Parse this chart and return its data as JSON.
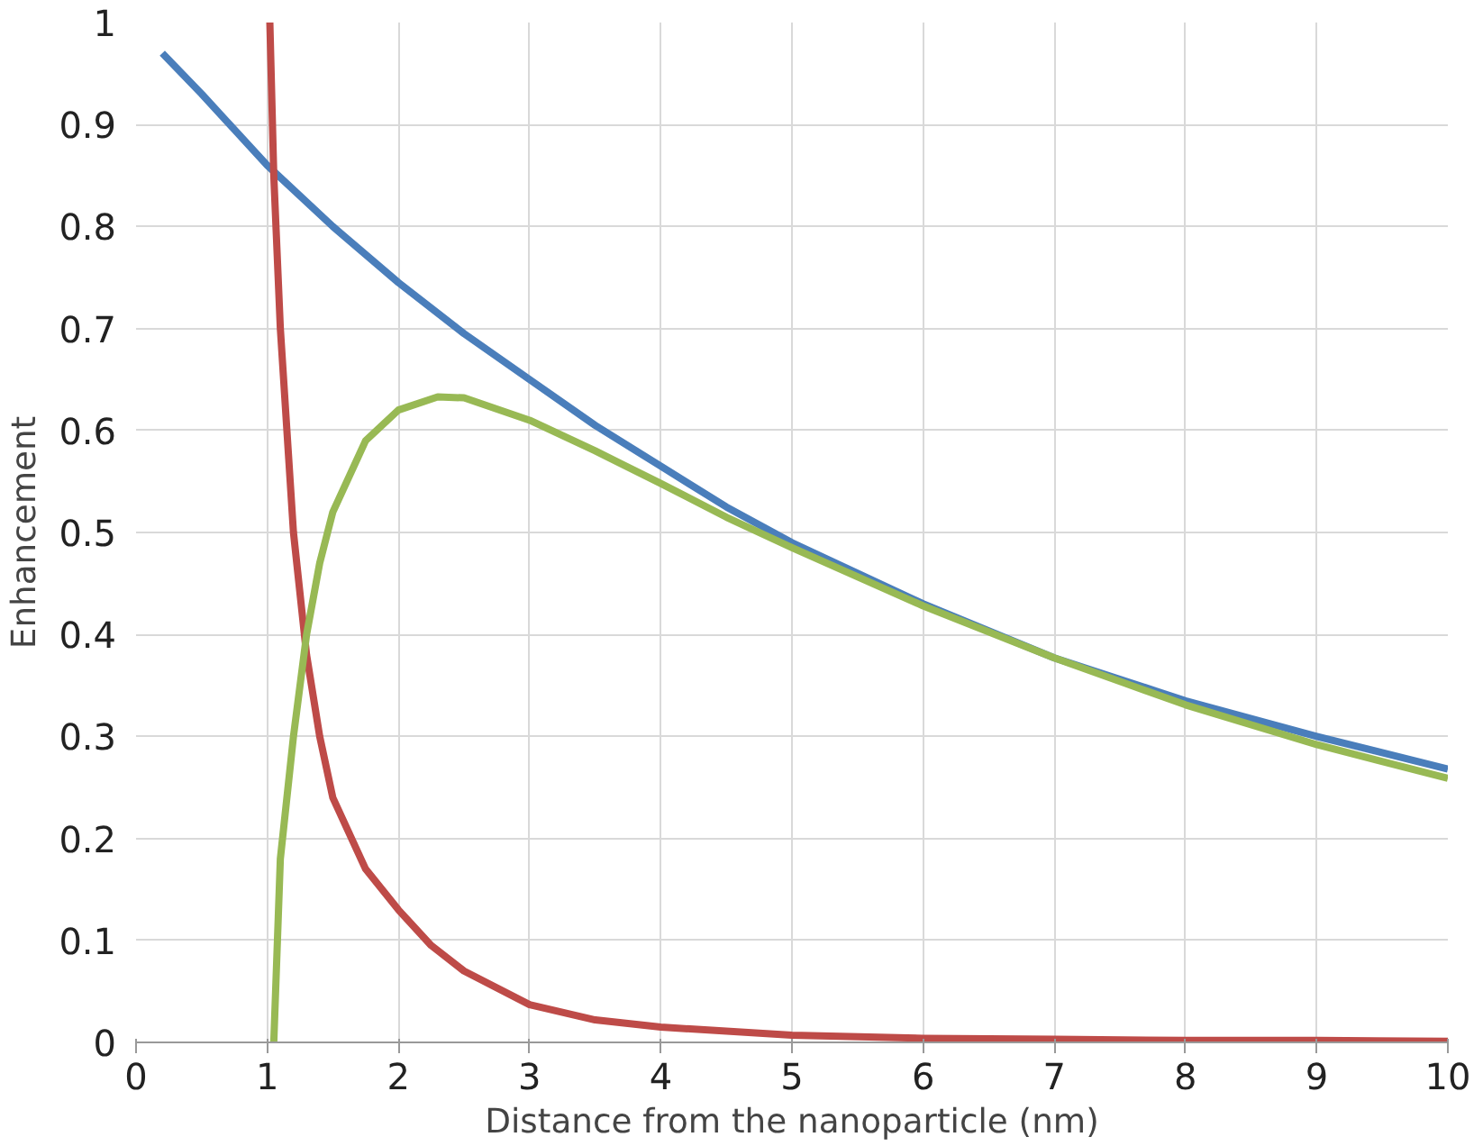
{
  "chart_data": {
    "type": "line",
    "xlabel": "Distance from the nanoparticle (nm)",
    "ylabel": "Enhancement",
    "xlim": [
      0,
      10
    ],
    "ylim": [
      0,
      1
    ],
    "xticks": [
      0,
      1,
      2,
      3,
      4,
      5,
      6,
      7,
      8,
      9,
      10
    ],
    "yticks": [
      0,
      0.1,
      0.2,
      0.3,
      0.4,
      0.5,
      0.6,
      0.7,
      0.8,
      0.9,
      1
    ],
    "grid": true,
    "marker": "none",
    "line_style": "solid",
    "series": [
      {
        "color": "#4a7ebb",
        "x": [
          0.2,
          0.5,
          1,
          1.5,
          2,
          2.5,
          3,
          3.5,
          4,
          4.5,
          5,
          6,
          7,
          8,
          9,
          10
        ],
        "values": [
          0.97,
          0.93,
          0.86,
          0.8,
          0.745,
          0.695,
          0.65,
          0.605,
          0.565,
          0.525,
          0.49,
          0.43,
          0.377,
          0.335,
          0.3,
          0.268
        ]
      },
      {
        "color": "#be4b48",
        "x": [
          1.02,
          1.05,
          1.1,
          1.2,
          1.3,
          1.4,
          1.5,
          1.75,
          2,
          2.25,
          2.5,
          3,
          3.5,
          4,
          5,
          6,
          7,
          8,
          9,
          10
        ],
        "values": [
          1,
          0.85,
          0.7,
          0.5,
          0.38,
          0.3,
          0.24,
          0.17,
          0.13,
          0.095,
          0.07,
          0.037,
          0.022,
          0.015,
          0.007,
          0.004,
          0.003,
          0.002,
          0.002,
          0.001
        ]
      },
      {
        "color": "#98b954",
        "x": [
          1.05,
          1.1,
          1.2,
          1.3,
          1.4,
          1.5,
          1.75,
          2,
          2.3,
          2.5,
          3,
          3.5,
          4,
          4.5,
          5,
          6,
          7,
          8,
          9,
          10
        ],
        "values": [
          0,
          0.18,
          0.3,
          0.4,
          0.47,
          0.52,
          0.59,
          0.62,
          0.633,
          0.632,
          0.61,
          0.58,
          0.548,
          0.515,
          0.485,
          0.428,
          0.377,
          0.331,
          0.292,
          0.259
        ]
      }
    ]
  }
}
